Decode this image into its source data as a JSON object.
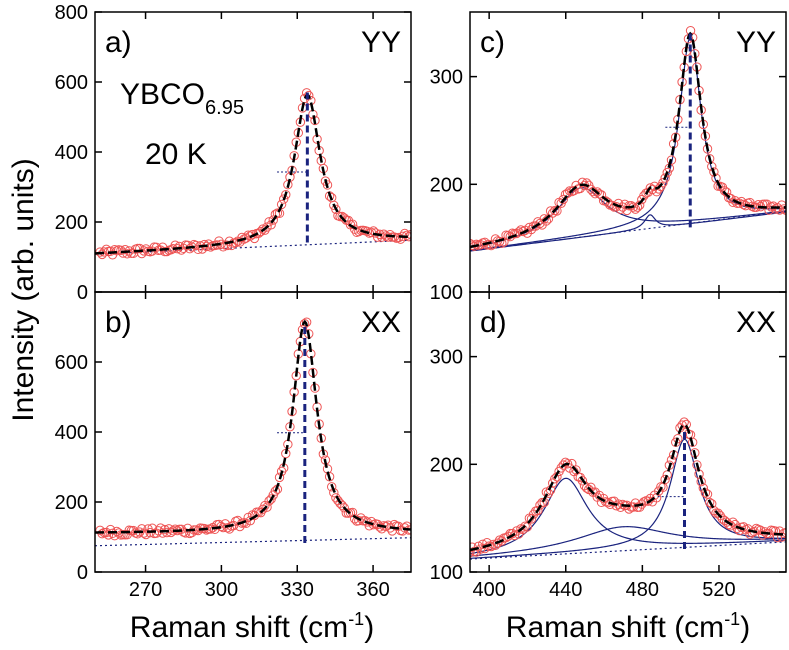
{
  "chart_data": {
    "type": "line",
    "ylabel": "Intensity (arb. units)",
    "xlabel_main": "Raman shift (cm",
    "xlabel_sup": "-1",
    "xlabel_close": ")",
    "colors": {
      "data_markers": "#ee5555",
      "fit_total": "#000000",
      "components": "#1a237e",
      "peak_marker": "#1a237e"
    },
    "panels": [
      {
        "id": "a",
        "label": "a)",
        "polarization": "YY",
        "annotation_main": "YBCO",
        "annotation_sub": "6.95",
        "annotation_temp": "20 K",
        "xlim": [
          250,
          375
        ],
        "ylim": [
          0,
          800
        ],
        "xticks": [],
        "yticks": [
          0,
          200,
          400,
          600,
          800
        ],
        "show_ytick_labels": true,
        "peak": {
          "x": 334,
          "y_top": 570,
          "y_bottom": 130
        },
        "peak_baseline_segment": {
          "x1": 322,
          "x2": 334,
          "y": 343
        },
        "background": {
          "x": [
            250,
            375
          ],
          "y": [
            108,
            148
          ]
        },
        "fit": {
          "center": 334,
          "gamma": 6.2,
          "amplitude": 428,
          "bg0": 108,
          "bg1": 0.32
        },
        "data_range": [
          252,
          375
        ]
      },
      {
        "id": "b",
        "label": "b)",
        "polarization": "XX",
        "xlim": [
          250,
          375
        ],
        "ylim": [
          0,
          800
        ],
        "xticks": [
          270,
          300,
          330,
          360
        ],
        "yticks": [
          0,
          200,
          400,
          600
        ],
        "show_ytick_labels": true,
        "peak": {
          "x": 333,
          "y_top": 700,
          "y_bottom": 80
        },
        "peak_baseline_segment": {
          "x1": 322,
          "x2": 333,
          "y": 398
        },
        "background": {
          "x": [
            250,
            375
          ],
          "y": [
            75,
            98
          ]
        },
        "fit": {
          "center": 333,
          "gamma": 5.8,
          "amplitude": 605,
          "bg0": 110,
          "bg1": 0.0
        },
        "data_range": [
          252,
          375
        ]
      },
      {
        "id": "c",
        "label": "c)",
        "polarization": "YY",
        "xlim": [
          390,
          555
        ],
        "ylim": [
          100,
          360
        ],
        "xticks": [],
        "yticks": [
          100,
          200,
          300
        ],
        "show_ytick_labels": true,
        "peak": {
          "x": 505,
          "y_top": 340,
          "y_bottom": 160
        },
        "peak_baseline_segment": {
          "x1": 492,
          "x2": 505,
          "y": 253
        },
        "background": {
          "x": [
            390,
            555
          ],
          "y": [
            138,
            175
          ]
        },
        "fit": {
          "peaks": [
            {
              "center": 448,
              "gamma": 16,
              "amplitude": 46
            },
            {
              "center": 484,
              "gamma": 3.5,
              "amplitude": 13
            },
            {
              "center": 505,
              "gamma": 7,
              "amplitude": 173
            }
          ],
          "bg0": 138,
          "bg1": 0.22
        },
        "data_range": [
          390,
          555
        ]
      },
      {
        "id": "d",
        "label": "d)",
        "polarization": "XX",
        "xlim": [
          390,
          555
        ],
        "ylim": [
          100,
          360
        ],
        "xticks": [
          400,
          440,
          480,
          520
        ],
        "yticks": [
          100,
          200,
          300
        ],
        "show_ytick_labels": true,
        "peak": {
          "x": 502,
          "y_top": 230,
          "y_bottom": 120
        },
        "peak_baseline_segment": {
          "x1": 488,
          "x2": 502,
          "y": 170
        },
        "background": {
          "x": [
            390,
            555
          ],
          "y": [
            112,
            128
          ]
        },
        "fit": {
          "peaks": [
            {
              "center": 440,
              "gamma": 14,
              "amplitude": 70
            },
            {
              "center": 470,
              "gamma": 30,
              "amplitude": 22
            },
            {
              "center": 502,
              "gamma": 9,
              "amplitude": 100
            }
          ],
          "bg0": 112,
          "bg1": 0.1
        },
        "data_range": [
          390,
          555
        ]
      }
    ]
  }
}
